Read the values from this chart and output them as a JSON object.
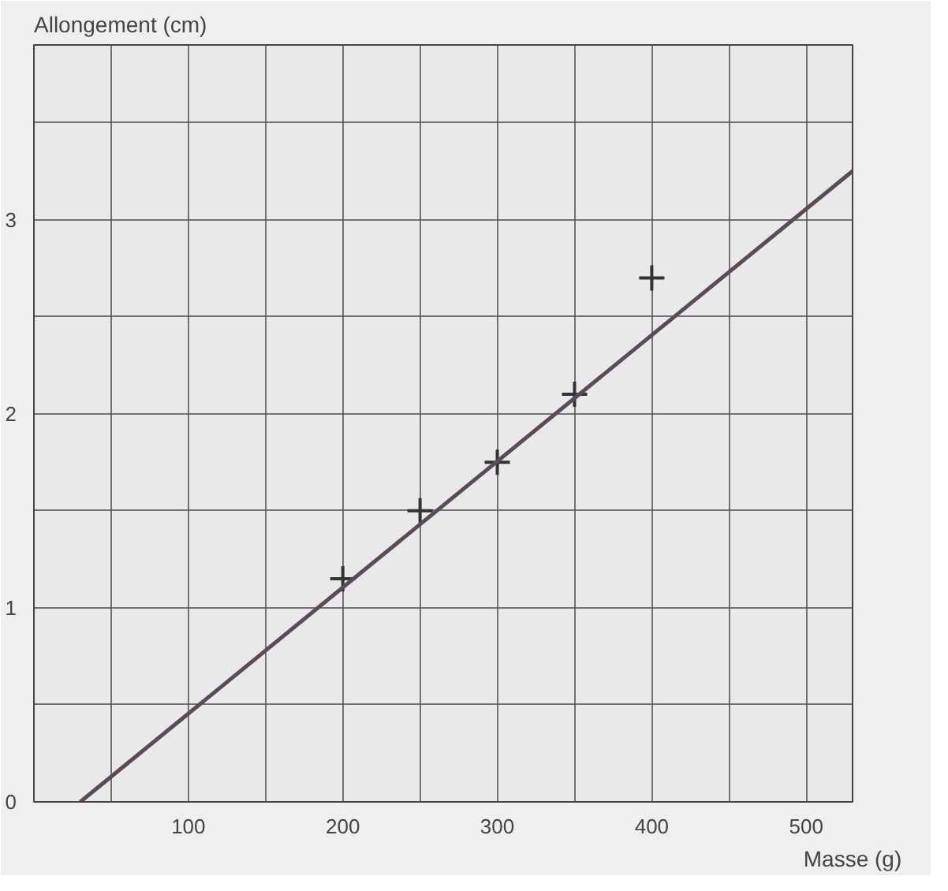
{
  "chart_data": {
    "type": "scatter",
    "xlabel": "Masse (g)",
    "ylabel": "Allongement (cm)",
    "series": [
      {
        "color": "#333333",
        "marker": "cross",
        "x": [
          200,
          250,
          300,
          350,
          400
        ],
        "values": [
          1.15,
          1.5,
          1.75,
          2.1,
          2.7
        ]
      },
      {
        "type": "line",
        "color": "#5a4a5a",
        "line_style": "solid",
        "marker": "none",
        "x": [
          30,
          530
        ],
        "values": [
          0,
          3.25
        ]
      }
    ],
    "xlim": [
      0,
      530
    ],
    "ylim": [
      0,
      3.9
    ],
    "xticks": [
      {
        "value": 0,
        "label": null
      },
      {
        "value": 50,
        "label": null
      },
      100,
      {
        "value": 150,
        "label": null
      },
      200,
      {
        "value": 250,
        "label": null
      },
      300,
      {
        "value": 350,
        "label": null
      },
      400,
      {
        "value": 450,
        "label": null
      },
      500
    ],
    "yticks": [
      0,
      {
        "value": 0.5,
        "label": null
      },
      1,
      {
        "value": 1.5,
        "label": null
      },
      2,
      {
        "value": 2.5,
        "label": null
      },
      3,
      {
        "value": 3.5,
        "label": null
      }
    ],
    "grid": true
  }
}
